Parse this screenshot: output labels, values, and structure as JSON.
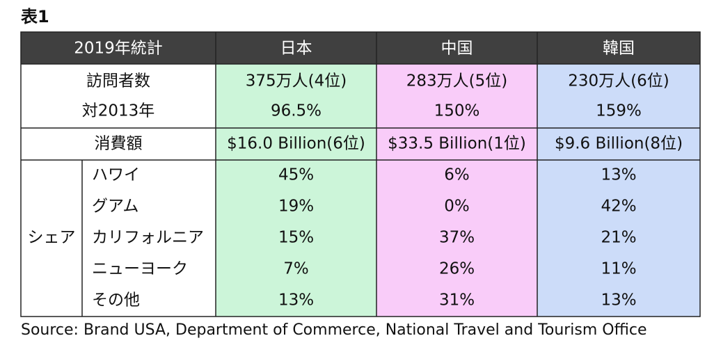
{
  "title": "表1",
  "table": {
    "header": [
      "2019年統計",
      "日本",
      "中国",
      "韓国"
    ],
    "visitors": {
      "label": "訪問者数",
      "values": [
        "375万人(4位)",
        "283万人(5位)",
        "230万人(6位)"
      ]
    },
    "growth": {
      "label": "対2013年",
      "values": [
        "96.5%",
        "150%",
        "159%"
      ]
    },
    "spending": {
      "label": "消費額",
      "values": [
        "$16.0 Billion(6位)",
        "$33.5 Billion(1位)",
        "$9.6 Billion(8位)"
      ]
    },
    "share": {
      "label": "シェア",
      "rows": [
        {
          "label": "ハワイ",
          "values": [
            "45%",
            "6%",
            "13%"
          ]
        },
        {
          "label": "グアム",
          "values": [
            "19%",
            "0%",
            "42%"
          ]
        },
        {
          "label": "カリフォルニア",
          "values": [
            "15%",
            "37%",
            "21%"
          ]
        },
        {
          "label": "ニューヨーク",
          "values": [
            "7%",
            "26%",
            "11%"
          ]
        },
        {
          "label": "その他",
          "values": [
            "13%",
            "31%",
            "13%"
          ]
        }
      ]
    }
  },
  "source": "Source: Brand USA, Department of Commerce, National Travel and Tourism Office"
}
